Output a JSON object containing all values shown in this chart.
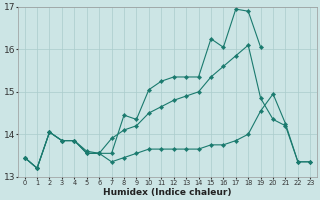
{
  "xlabel": "Humidex (Indice chaleur)",
  "background_color": "#cce5e5",
  "grid_color": "#aacccc",
  "line_color": "#1a7a6e",
  "xlim": [
    -0.5,
    23.5
  ],
  "ylim": [
    13,
    17
  ],
  "xticks": [
    0,
    1,
    2,
    3,
    4,
    5,
    6,
    7,
    8,
    9,
    10,
    11,
    12,
    13,
    14,
    15,
    16,
    17,
    18,
    19,
    20,
    21,
    22,
    23
  ],
  "yticks": [
    13,
    14,
    15,
    16,
    17
  ],
  "line1_x": [
    0,
    1,
    2,
    3,
    4,
    5,
    6,
    7,
    8,
    9,
    10,
    11,
    12,
    13,
    14,
    15,
    16,
    17,
    18,
    19
  ],
  "line1_y": [
    13.45,
    13.2,
    14.05,
    13.85,
    13.85,
    13.6,
    13.55,
    13.55,
    14.45,
    14.35,
    15.05,
    15.25,
    15.35,
    15.35,
    15.35,
    16.25,
    16.05,
    16.95,
    16.9,
    16.05
  ],
  "line2_x": [
    0,
    1,
    2,
    3,
    4,
    5,
    6,
    7,
    8,
    9,
    10,
    11,
    12,
    13,
    14,
    15,
    16,
    17,
    18,
    19,
    20,
    21,
    22,
    23
  ],
  "line2_y": [
    13.45,
    13.2,
    14.05,
    13.85,
    13.85,
    13.55,
    13.55,
    13.9,
    14.1,
    14.2,
    14.5,
    14.65,
    14.8,
    14.9,
    15.0,
    15.35,
    15.6,
    15.85,
    16.1,
    14.85,
    14.35,
    14.2,
    13.35,
    13.35
  ],
  "line3_x": [
    0,
    1,
    2,
    3,
    4,
    5,
    6,
    7,
    8,
    9,
    10,
    11,
    12,
    13,
    14,
    15,
    16,
    17,
    18,
    19,
    20,
    21,
    22,
    23
  ],
  "line3_y": [
    13.45,
    13.2,
    14.05,
    13.85,
    13.85,
    13.55,
    13.55,
    13.35,
    13.45,
    13.55,
    13.65,
    13.65,
    13.65,
    13.65,
    13.65,
    13.75,
    13.75,
    13.85,
    14.0,
    14.55,
    14.95,
    14.25,
    13.35,
    13.35
  ]
}
